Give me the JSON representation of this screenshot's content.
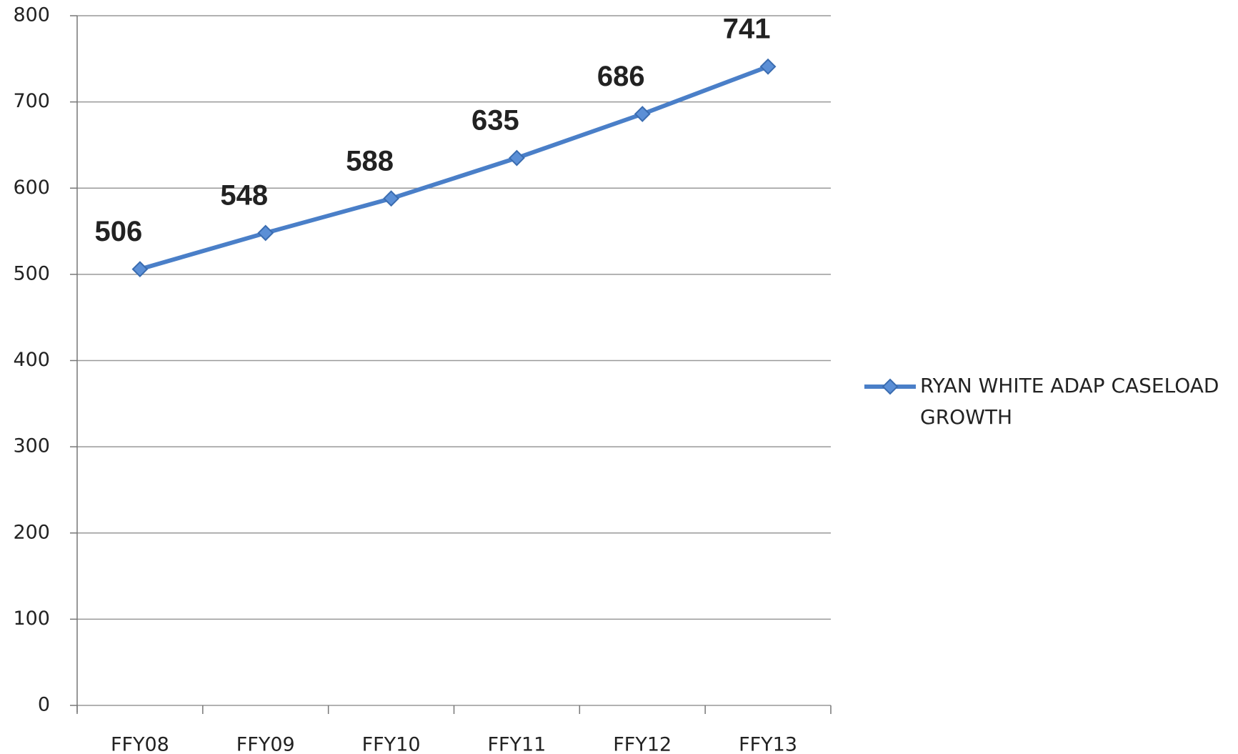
{
  "chart_data": {
    "type": "line",
    "categories": [
      "FFY08",
      "FFY09",
      "FFY10",
      "FFY11",
      "FFY12",
      "FFY13"
    ],
    "series": [
      {
        "name": "RYAN WHITE ADAP CASELOAD GROWTH",
        "color": "#4a7fc8",
        "values": [
          506,
          548,
          588,
          635,
          686,
          741
        ]
      }
    ],
    "ylim": [
      0,
      800
    ],
    "yticks": [
      0,
      100,
      200,
      300,
      400,
      500,
      600,
      700,
      800
    ],
    "grid": true,
    "legend": "right"
  }
}
